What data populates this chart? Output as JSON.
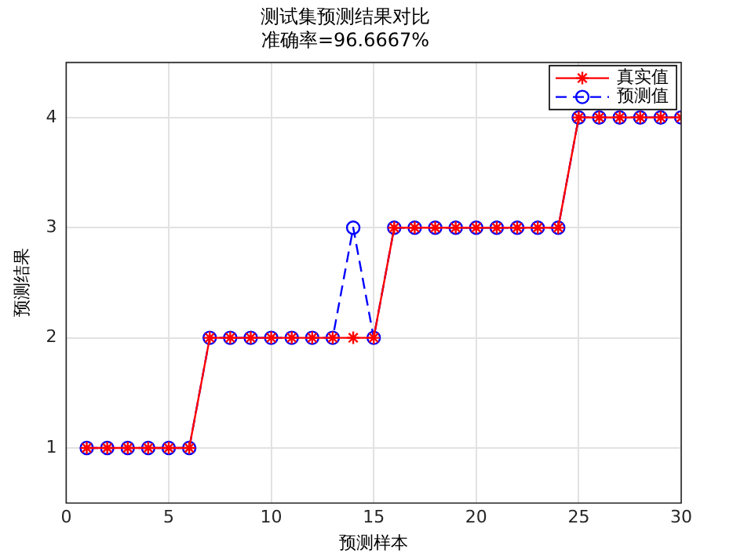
{
  "chart_data": {
    "type": "line",
    "title": "测试集预测结果对比",
    "subtitle": "准确率=96.6667%",
    "xlabel": "预测样本",
    "ylabel": "预测结果",
    "x": [
      1,
      2,
      3,
      4,
      5,
      6,
      7,
      8,
      9,
      10,
      11,
      12,
      13,
      14,
      15,
      16,
      17,
      18,
      19,
      20,
      21,
      22,
      23,
      24,
      25,
      26,
      27,
      28,
      29,
      30
    ],
    "series": [
      {
        "name": "真实值",
        "color": "#ff0000",
        "marker": "cross",
        "line_style": "solid",
        "values": [
          1,
          1,
          1,
          1,
          1,
          1,
          2,
          2,
          2,
          2,
          2,
          2,
          2,
          2,
          2,
          3,
          3,
          3,
          3,
          3,
          3,
          3,
          3,
          3,
          4,
          4,
          4,
          4,
          4,
          4
        ]
      },
      {
        "name": "预测值",
        "color": "#0000ff",
        "marker": "circle",
        "line_style": "dashed",
        "values": [
          1,
          1,
          1,
          1,
          1,
          1,
          2,
          2,
          2,
          2,
          2,
          2,
          2,
          3,
          2,
          3,
          3,
          3,
          3,
          3,
          3,
          3,
          3,
          3,
          4,
          4,
          4,
          4,
          4,
          4
        ]
      }
    ],
    "xlim": [
      0,
      30
    ],
    "xticks": [
      0,
      5,
      10,
      15,
      20,
      25,
      30
    ],
    "ylim": [
      0.5,
      4.5
    ],
    "yticks": [
      1,
      2,
      3,
      4
    ],
    "grid": true,
    "legend": "top right"
  }
}
